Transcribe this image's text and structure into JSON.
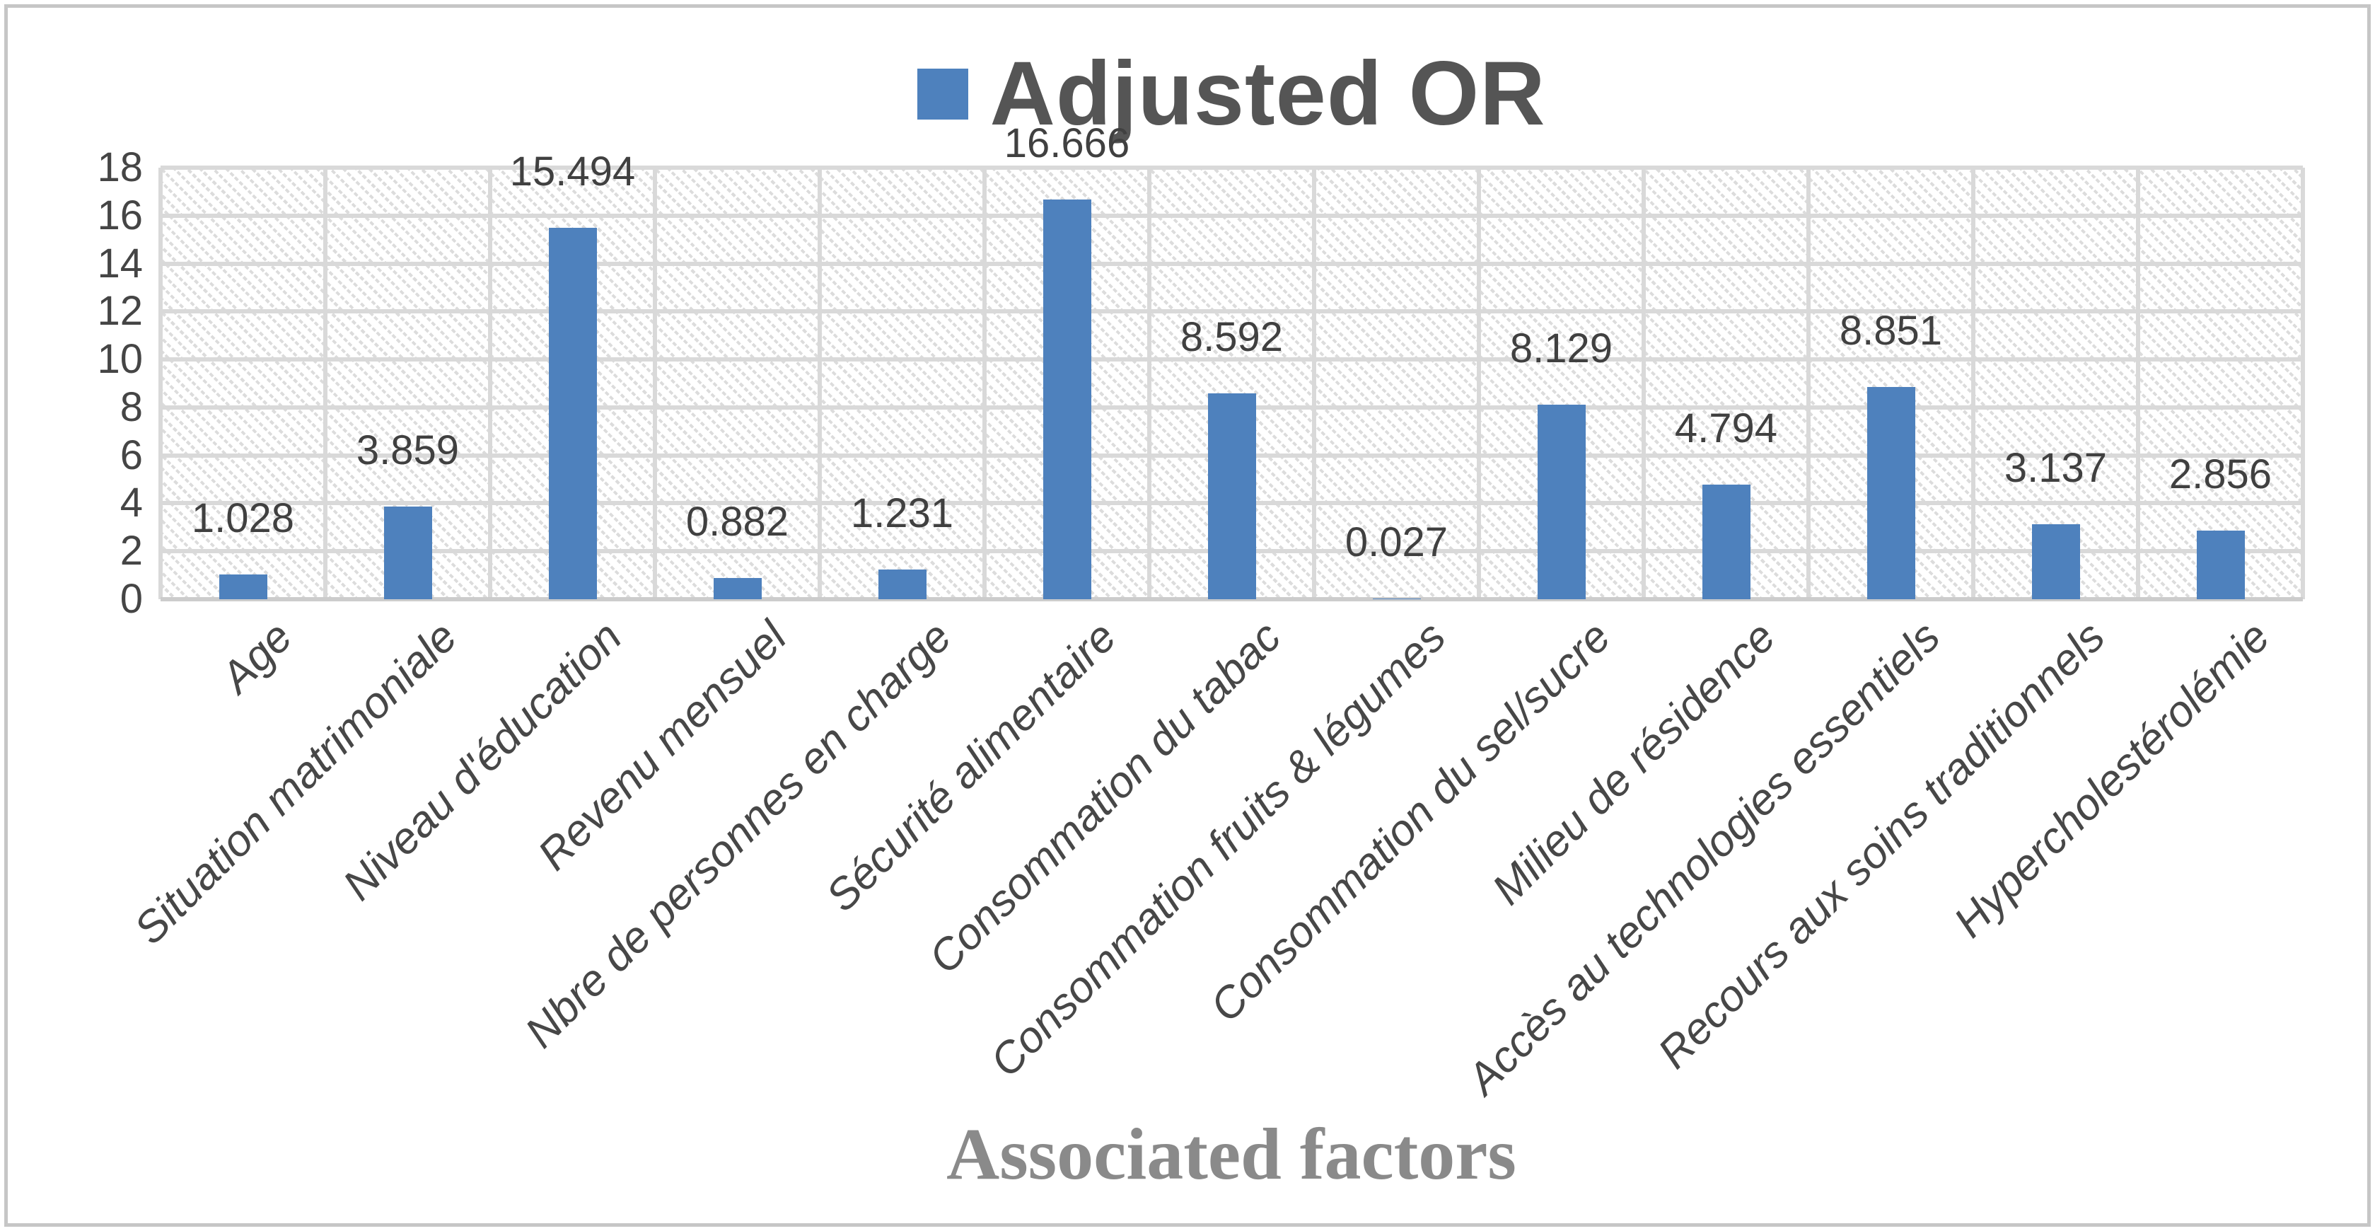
{
  "chart_data": {
    "type": "bar",
    "title": "Adjusted OR",
    "xlabel": "Associated factors",
    "ylabel": "",
    "ylim": [
      0,
      18
    ],
    "ytick_step": 2,
    "yticks": [
      0,
      2,
      4,
      6,
      8,
      10,
      12,
      14,
      16,
      18
    ],
    "grid": "horizontal and vertical light gray gridlines, hatched plot background",
    "legend_position": "top-center",
    "categories": [
      "Age",
      "Situation matrimoniale",
      "Niveau d'éducation",
      "Revenu mensuel",
      "Nbre de personnes en charge",
      "Sécurité alimentaire",
      "Consommation du tabac",
      "Consommation fruits & légumes",
      "Consommation du sel/sucre",
      "Milieu de résidence",
      "Accès au technologies essentiels",
      "Recours aux soins traditionnels",
      "Hypercholestérolémie"
    ],
    "series": [
      {
        "name": "Adjusted OR",
        "values": [
          1.028,
          3.859,
          15.494,
          0.882,
          1.231,
          16.666,
          8.592,
          0.027,
          8.129,
          4.794,
          8.851,
          3.137,
          2.856
        ],
        "value_labels": [
          "1.028",
          "3.859",
          "15.494",
          "0.882",
          "1.231",
          "16.666",
          "8.592",
          "0.027",
          "8.129",
          "4.794",
          "8.851",
          "3.137",
          "2.856"
        ]
      }
    ],
    "colors": {
      "bar": "#4E81BD",
      "gridline": "#D9D9D9",
      "tick_text": "#454545",
      "data_label_text": "#404040",
      "legend_text": "#555555",
      "axis_title_text": "#8A8A8A"
    }
  }
}
